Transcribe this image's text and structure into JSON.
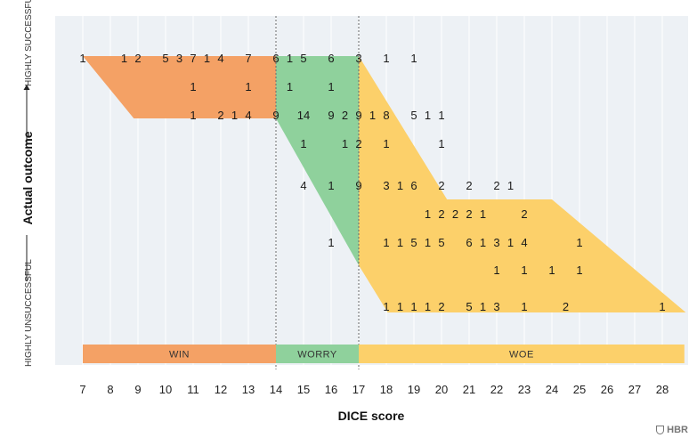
{
  "chart_data": {
    "type": "table",
    "xlabel": "DICE score",
    "ylabel": "Actual outcome",
    "y_top_label": "HIGHLY SUCCESSFUL",
    "y_bottom_label": "HIGHLY UNSUCCESSFUL",
    "x_ticks": [
      7,
      8,
      9,
      10,
      11,
      12,
      13,
      14,
      15,
      16,
      17,
      18,
      19,
      20,
      21,
      22,
      23,
      24,
      25,
      26,
      27,
      28
    ],
    "zones": [
      {
        "name": "WIN",
        "from": 7,
        "to": 14,
        "color": "#f4a165"
      },
      {
        "name": "WORRY",
        "from": 14,
        "to": 17,
        "color": "#8fd19c"
      },
      {
        "name": "WOE",
        "from": 17,
        "to": 28.8,
        "color": "#fcd06a"
      }
    ],
    "rows": [
      {
        "label": "1",
        "cells": [
          {
            "x": 7,
            "n": 1
          },
          {
            "x": 8.5,
            "n": 1
          },
          {
            "x": 9,
            "n": 2
          },
          {
            "x": 10,
            "n": 5
          },
          {
            "x": 10.5,
            "n": 3
          },
          {
            "x": 11,
            "n": 7
          },
          {
            "x": 11.5,
            "n": 1
          },
          {
            "x": 12,
            "n": 4
          },
          {
            "x": 13,
            "n": 7
          },
          {
            "x": 14,
            "n": 6
          },
          {
            "x": 14.5,
            "n": 1
          },
          {
            "x": 15,
            "n": 5
          },
          {
            "x": 16,
            "n": 6
          },
          {
            "x": 17,
            "n": 3
          },
          {
            "x": 18,
            "n": 1
          },
          {
            "x": 19,
            "n": 1
          }
        ]
      },
      {
        "label": "2",
        "cells": [
          {
            "x": 11,
            "n": 1
          },
          {
            "x": 13,
            "n": 1
          },
          {
            "x": 14.5,
            "n": 1
          },
          {
            "x": 16,
            "n": 1
          }
        ]
      },
      {
        "label": "3",
        "cells": [
          {
            "x": 11,
            "n": 1
          },
          {
            "x": 12,
            "n": 2
          },
          {
            "x": 12.5,
            "n": 1
          },
          {
            "x": 13,
            "n": 4
          },
          {
            "x": 14,
            "n": 9
          },
          {
            "x": 15,
            "n": 14
          },
          {
            "x": 16,
            "n": 9
          },
          {
            "x": 16.5,
            "n": 2
          },
          {
            "x": 17,
            "n": 9
          },
          {
            "x": 17.5,
            "n": 1
          },
          {
            "x": 18,
            "n": 8
          },
          {
            "x": 19,
            "n": 5
          },
          {
            "x": 19.5,
            "n": 1
          },
          {
            "x": 20,
            "n": 1
          }
        ]
      },
      {
        "label": "4",
        "cells": [
          {
            "x": 15,
            "n": 1
          },
          {
            "x": 16.5,
            "n": 1
          },
          {
            "x": 17,
            "n": 2
          },
          {
            "x": 18,
            "n": 1
          },
          {
            "x": 20,
            "n": 1
          }
        ]
      },
      {
        "label": "5",
        "cells": [
          {
            "x": 15,
            "n": 4
          },
          {
            "x": 16,
            "n": 1
          },
          {
            "x": 17,
            "n": 9
          },
          {
            "x": 18,
            "n": 3
          },
          {
            "x": 18.5,
            "n": 1
          },
          {
            "x": 19,
            "n": 6
          },
          {
            "x": 20,
            "n": 2
          },
          {
            "x": 21,
            "n": 2
          },
          {
            "x": 22,
            "n": 2
          },
          {
            "x": 22.5,
            "n": 1
          }
        ]
      },
      {
        "label": "6",
        "cells": [
          {
            "x": 19.5,
            "n": 1
          },
          {
            "x": 20,
            "n": 2
          },
          {
            "x": 20.5,
            "n": 2
          },
          {
            "x": 21,
            "n": 2
          },
          {
            "x": 21.5,
            "n": 1
          },
          {
            "x": 23,
            "n": 2
          }
        ]
      },
      {
        "label": "7",
        "cells": [
          {
            "x": 16,
            "n": 1
          },
          {
            "x": 18,
            "n": 1
          },
          {
            "x": 18.5,
            "n": 1
          },
          {
            "x": 19,
            "n": 5
          },
          {
            "x": 19.5,
            "n": 1
          },
          {
            "x": 20,
            "n": 5
          },
          {
            "x": 21,
            "n": 6
          },
          {
            "x": 21.5,
            "n": 1
          },
          {
            "x": 22,
            "n": 3
          },
          {
            "x": 22.5,
            "n": 1
          },
          {
            "x": 23,
            "n": 4
          },
          {
            "x": 25,
            "n": 1
          }
        ]
      },
      {
        "label": "8",
        "cells": [
          {
            "x": 22,
            "n": 1
          },
          {
            "x": 23,
            "n": 1
          },
          {
            "x": 24,
            "n": 1
          },
          {
            "x": 25,
            "n": 1
          }
        ]
      },
      {
        "label": "9",
        "cells": [
          {
            "x": 18,
            "n": 1
          },
          {
            "x": 18.5,
            "n": 1
          },
          {
            "x": 19,
            "n": 1
          },
          {
            "x": 19.5,
            "n": 1
          },
          {
            "x": 20,
            "n": 2
          },
          {
            "x": 21,
            "n": 5
          },
          {
            "x": 21.5,
            "n": 1
          },
          {
            "x": 22,
            "n": 3
          },
          {
            "x": 23,
            "n": 1
          },
          {
            "x": 24.5,
            "n": 2
          },
          {
            "x": 28,
            "n": 1
          }
        ]
      }
    ]
  },
  "brand": {
    "name": "HBR"
  }
}
